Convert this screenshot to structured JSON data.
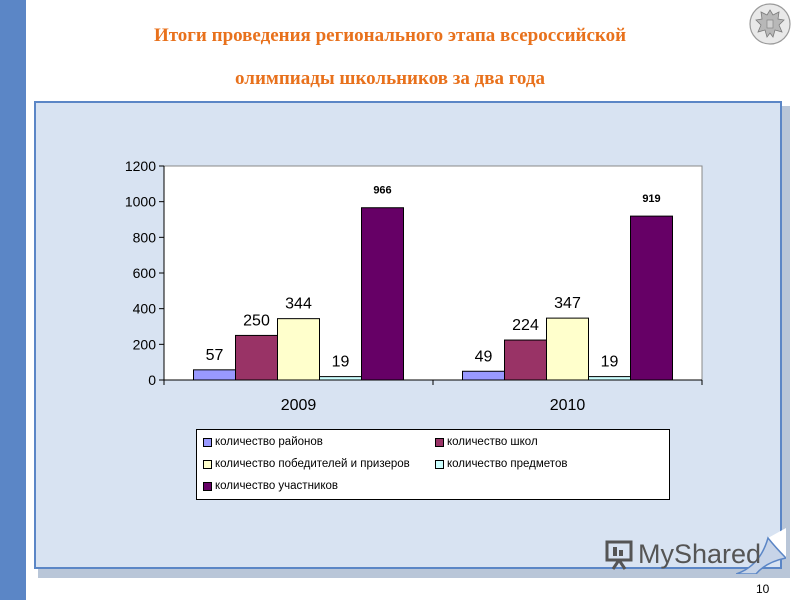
{
  "slide": {
    "title_line1": "Итоги проведения регионального этапа всероссийской",
    "title_line2": "олимпиады школьников за два года",
    "page_number": "10",
    "watermark": "MyShared",
    "accent_color": "#e8711c",
    "side_bar_color": "#5b86c6"
  },
  "chart_data": {
    "type": "bar",
    "categories": [
      "2009",
      "2010"
    ],
    "yticks": [
      "0",
      "200",
      "400",
      "600",
      "800",
      "1000",
      "1200"
    ],
    "ylim": [
      0,
      1200
    ],
    "grid": false,
    "legend_position": "bottom",
    "series": [
      {
        "name": "количество районов",
        "values": [
          57,
          49
        ],
        "labels": [
          "57",
          "49"
        ],
        "color": "#9999ff"
      },
      {
        "name": "количество школ",
        "values": [
          250,
          224
        ],
        "labels": [
          "250",
          "224"
        ],
        "color": "#993366"
      },
      {
        "name": "количество победителей и призеров",
        "values": [
          344,
          347
        ],
        "labels": [
          "344",
          "347"
        ],
        "color": "#ffffcc"
      },
      {
        "name": "количество предметов",
        "values": [
          19,
          19
        ],
        "labels": [
          "19",
          "19"
        ],
        "color": "#ccffff"
      },
      {
        "name": "количество участников",
        "values": [
          966,
          919
        ],
        "labels": [
          "966",
          "919"
        ],
        "color": "#660066"
      }
    ]
  }
}
